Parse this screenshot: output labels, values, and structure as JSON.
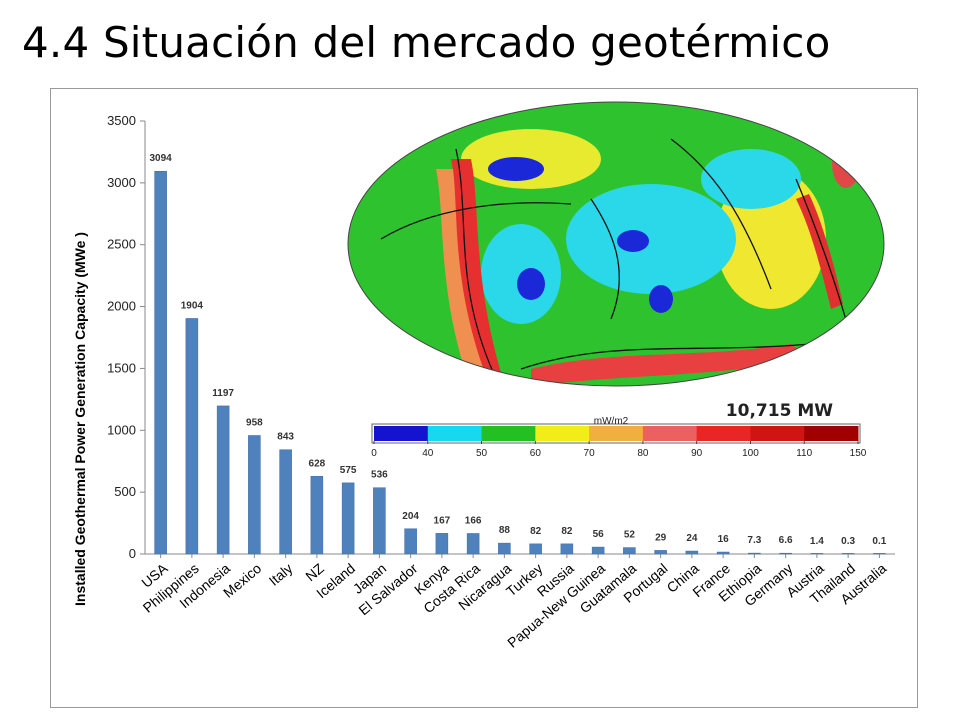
{
  "slide": {
    "title": "4.4 Situación del mercado geotérmico"
  },
  "chart_data": {
    "type": "bar",
    "ylabel": "Installed Geothermal Power Generation Capacity (MWe )",
    "xlabel": "",
    "ylim": [
      0,
      3500
    ],
    "yticks": [
      0,
      500,
      1000,
      1500,
      2000,
      2500,
      3000,
      3500
    ],
    "grid": false,
    "bar_color": "#4f81bd",
    "categories": [
      "USA",
      "Philippines",
      "Indonesia",
      "Mexico",
      "Italy",
      "NZ",
      "Iceland",
      "Japan",
      "El Salvador",
      "Kenya",
      "Costa Rica",
      "Nicaragua",
      "Turkey",
      "Russia",
      "Papua-New Guinea",
      "Guatamala",
      "Portugal",
      "China",
      "France",
      "Ethiopia",
      "Germany",
      "Austria",
      "Thailand",
      "Australia"
    ],
    "values": [
      3094,
      1904,
      1197,
      958,
      843,
      628,
      575,
      536,
      204,
      167,
      166,
      88,
      82,
      82,
      56,
      52,
      29,
      24,
      16,
      7.3,
      6.6,
      1.4,
      0.3,
      0.1
    ],
    "data_labels": [
      "3094",
      "1904",
      "1197",
      "958",
      "843",
      "628",
      "575",
      "536",
      "204",
      "167",
      "166",
      "88",
      "82",
      "82",
      "56",
      "52",
      "29",
      "24",
      "16",
      "7.3",
      "6.6",
      "1.4",
      "0.3",
      "0.1"
    ]
  },
  "inset_map": {
    "total_label": "10,715 MW",
    "colorbar_unit": "mW/m2",
    "colorbar_ticks": [
      "0",
      "40",
      "50",
      "60",
      "70",
      "80",
      "90",
      "100",
      "110",
      "150"
    ],
    "colorbar_colors": [
      "#1414d0",
      "#18d8f0",
      "#22c022",
      "#f2ec18",
      "#f0b040",
      "#ec6060",
      "#e82626",
      "#d01414",
      "#a00000"
    ]
  }
}
